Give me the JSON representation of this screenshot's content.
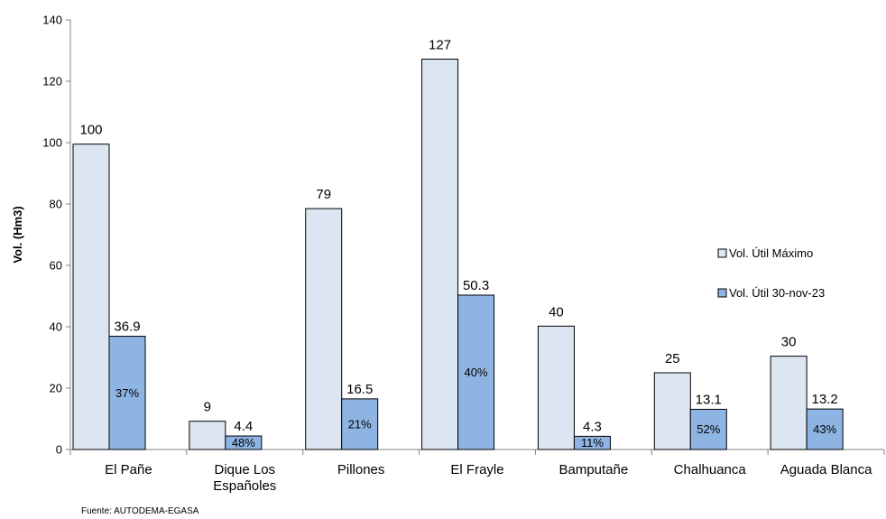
{
  "chart_data": {
    "type": "bar",
    "ylabel": "Vol. (Hm3)",
    "xlabel": "",
    "ylim": [
      0,
      140
    ],
    "yticks": [
      0,
      20,
      40,
      60,
      80,
      100,
      120,
      140
    ],
    "categories": [
      [
        "El Pañe"
      ],
      [
        "Dique Los",
        "Españoles"
      ],
      [
        "Pillones"
      ],
      [
        "El Frayle"
      ],
      [
        "Bamputañe"
      ],
      [
        "Chalhuanca"
      ],
      [
        "Aguada Blanca"
      ]
    ],
    "series": [
      {
        "name": "Vol. Útil Máximo",
        "color": "#dce6f2",
        "values": [
          99.5,
          9.2,
          78.5,
          127.2,
          40.2,
          25.0,
          30.4
        ],
        "labels": [
          "100",
          "9",
          "79",
          "127",
          "40",
          "25",
          "30"
        ]
      },
      {
        "name": "Vol. Útil 30-nov-23",
        "color": "#8eb4e3",
        "values": [
          36.9,
          4.4,
          16.5,
          50.3,
          4.3,
          13.1,
          13.2
        ],
        "labels": [
          "36.9",
          "4.4",
          "16.5",
          "50.3",
          "4.3",
          "13.1",
          "13.2"
        ],
        "percent_labels": [
          "37%",
          "48%",
          "21%",
          "40%",
          "11%",
          "52%",
          "43%"
        ]
      }
    ],
    "legend_position": "right",
    "grid": false,
    "source": "Fuente: AUTODEMA-EGASA"
  }
}
